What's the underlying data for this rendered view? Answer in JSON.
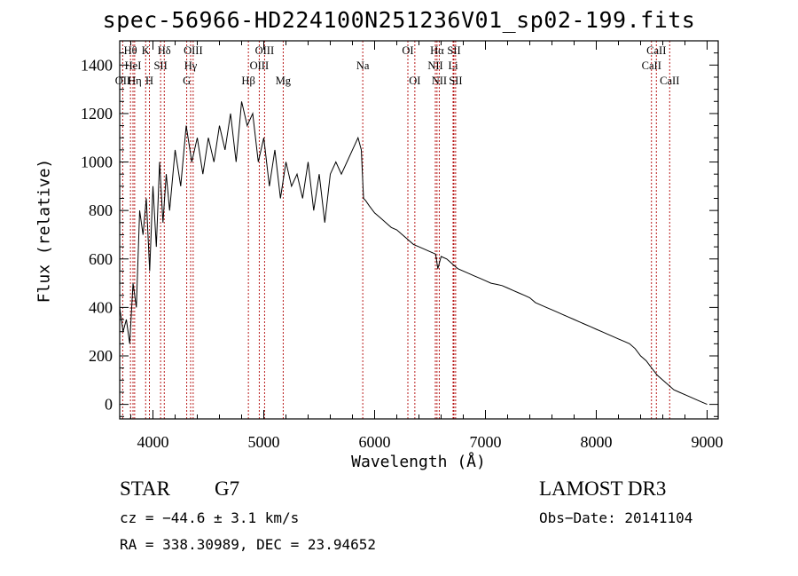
{
  "chart_data": {
    "type": "line",
    "title": "spec-56966-HD224100N251236V01_sp02-199.fits",
    "xlabel": "Wavelength (Å)",
    "ylabel": "Flux (relative)",
    "xlim": [
      3700,
      9100
    ],
    "ylim": [
      -60,
      1500
    ],
    "xticks": [
      4000,
      5000,
      6000,
      7000,
      8000,
      9000
    ],
    "yticks": [
      0,
      200,
      400,
      600,
      800,
      1000,
      1200,
      1400
    ],
    "series": [
      {
        "name": "flux",
        "x": [
          3700,
          3730,
          3760,
          3790,
          3820,
          3850,
          3880,
          3910,
          3940,
          3970,
          4000,
          4030,
          4060,
          4090,
          4120,
          4150,
          4200,
          4250,
          4300,
          4350,
          4400,
          4450,
          4500,
          4550,
          4600,
          4650,
          4700,
          4750,
          4800,
          4850,
          4900,
          4950,
          5000,
          5050,
          5100,
          5150,
          5200,
          5250,
          5300,
          5350,
          5400,
          5450,
          5500,
          5550,
          5600,
          5650,
          5700,
          5750,
          5800,
          5850,
          5880,
          5900,
          5920,
          5950,
          6000,
          6050,
          6100,
          6150,
          6200,
          6250,
          6300,
          6350,
          6400,
          6450,
          6500,
          6550,
          6570,
          6600,
          6650,
          6700,
          6750,
          6800,
          6850,
          6900,
          6950,
          7000,
          7050,
          7100,
          7150,
          7200,
          7250,
          7300,
          7350,
          7400,
          7450,
          7500,
          7550,
          7600,
          7650,
          7700,
          7750,
          7800,
          7850,
          7900,
          7950,
          8000,
          8050,
          8100,
          8150,
          8200,
          8250,
          8300,
          8350,
          8400,
          8450,
          8500,
          8550,
          8600,
          8650,
          8700,
          8750,
          8800,
          8850,
          8900,
          8950,
          9000
        ],
        "values": [
          400,
          300,
          350,
          250,
          500,
          400,
          800,
          700,
          850,
          550,
          900,
          650,
          1000,
          750,
          950,
          800,
          1050,
          900,
          1150,
          1000,
          1100,
          950,
          1100,
          1000,
          1150,
          1050,
          1200,
          1000,
          1250,
          1150,
          1200,
          1000,
          1100,
          900,
          1050,
          850,
          1000,
          900,
          950,
          850,
          1000,
          800,
          950,
          750,
          950,
          1000,
          950,
          1000,
          1050,
          1100,
          1050,
          850,
          840,
          820,
          790,
          770,
          750,
          730,
          720,
          700,
          680,
          660,
          650,
          640,
          630,
          620,
          560,
          610,
          600,
          580,
          560,
          550,
          540,
          530,
          520,
          510,
          500,
          495,
          490,
          480,
          470,
          460,
          450,
          440,
          420,
          410,
          400,
          390,
          380,
          370,
          360,
          350,
          340,
          330,
          320,
          310,
          300,
          290,
          280,
          270,
          260,
          250,
          230,
          200,
          180,
          150,
          120,
          100,
          80,
          60,
          50,
          40,
          30,
          20,
          10,
          0
        ]
      }
    ],
    "lines": [
      {
        "name": "Hθ",
        "x": 3797,
        "row": 1
      },
      {
        "name": "OII",
        "x": 3727,
        "row": 3
      },
      {
        "name": "HeI",
        "x": 3820,
        "row": 2
      },
      {
        "name": "Hη",
        "x": 3835,
        "row": 3
      },
      {
        "name": "K",
        "x": 3934,
        "row": 1
      },
      {
        "name": "H",
        "x": 3968,
        "row": 3
      },
      {
        "name": "SII",
        "x": 4069,
        "row": 2
      },
      {
        "name": "Hδ",
        "x": 4102,
        "row": 1
      },
      {
        "name": "G",
        "x": 4305,
        "row": 3
      },
      {
        "name": "OIII",
        "x": 4363,
        "row": 1
      },
      {
        "name": "Hγ",
        "x": 4340,
        "row": 2
      },
      {
        "name": "Hβ",
        "x": 4861,
        "row": 3
      },
      {
        "name": "OIII",
        "x": 4959,
        "row": 2
      },
      {
        "name": "OIII",
        "x": 5007,
        "row": 1
      },
      {
        "name": "Mg",
        "x": 5175,
        "row": 3
      },
      {
        "name": "Na",
        "x": 5893,
        "row": 2
      },
      {
        "name": "OI",
        "x": 6300,
        "row": 1
      },
      {
        "name": "OI",
        "x": 6363,
        "row": 3
      },
      {
        "name": "NII",
        "x": 6548,
        "row": 2
      },
      {
        "name": "Hα",
        "x": 6563,
        "row": 1
      },
      {
        "name": "NII",
        "x": 6583,
        "row": 3
      },
      {
        "name": "Li",
        "x": 6708,
        "row": 2
      },
      {
        "name": "SII",
        "x": 6716,
        "row": 1
      },
      {
        "name": "SII",
        "x": 6731,
        "row": 3
      },
      {
        "name": "CaII",
        "x": 8498,
        "row": 2
      },
      {
        "name": "CaII",
        "x": 8542,
        "row": 1
      },
      {
        "name": "CaII",
        "x": 8662,
        "row": 3
      }
    ]
  },
  "info": {
    "object_class": "STAR",
    "subclass": "G7",
    "survey": "LAMOST DR3",
    "cz": "cz = −44.6 ± 3.1 km/s",
    "obs_date": "Obs−Date: 20141104",
    "coords": "RA = 338.30989, DEC =  23.94652"
  },
  "colors": {
    "spectrum": "#000000",
    "line_markers": "#b00000",
    "axes": "#000000"
  }
}
